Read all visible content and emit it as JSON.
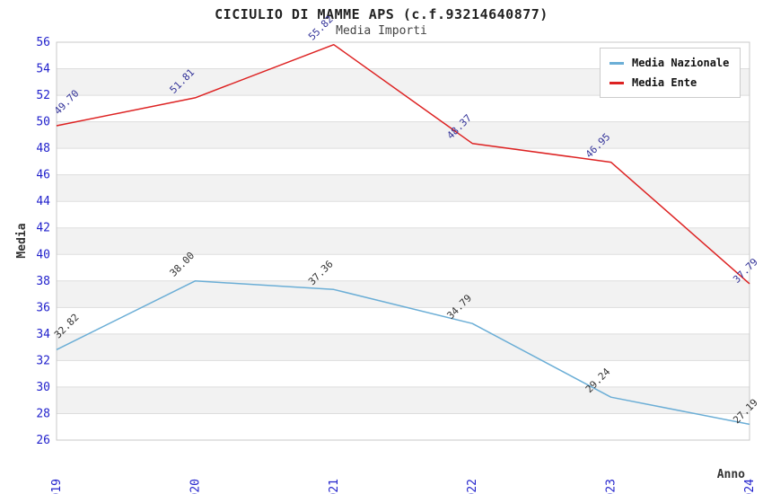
{
  "header": {
    "title": "CICIULIO DI MAMME APS (c.f.93214640877)",
    "subtitle": "Media Importi"
  },
  "legend": {
    "position": "top-right",
    "items": [
      {
        "label": "Media Nazionale",
        "color": "#6baed6"
      },
      {
        "label": "Media Ente",
        "color": "#dd2222"
      }
    ]
  },
  "chart_data": {
    "type": "line",
    "title": "CICIULIO DI MAMME APS (c.f.93214640877)",
    "subtitle": "Media Importi",
    "xlabel": "Anno",
    "ylabel": "Media",
    "x": [
      2019,
      2020,
      2021,
      2022,
      2023,
      2024
    ],
    "series": [
      {
        "name": "Media Nazionale",
        "color": "#6baed6",
        "label_color": "#333333",
        "values": [
          32.82,
          38.0,
          37.36,
          34.79,
          29.24,
          27.19
        ]
      },
      {
        "name": "Media Ente",
        "color": "#dd2222",
        "label_color": "#333399",
        "values": [
          49.7,
          51.81,
          55.82,
          48.37,
          46.95,
          37.79
        ]
      }
    ],
    "ylim": [
      26,
      56
    ],
    "ytick_step": 2,
    "grid": "horizontal-bands",
    "legend_position": "top-right",
    "colors": {
      "tick_label": "#2222cc",
      "band": "#f2f2f2",
      "gridline": "#dddddd",
      "border": "#c8c8c8"
    }
  }
}
